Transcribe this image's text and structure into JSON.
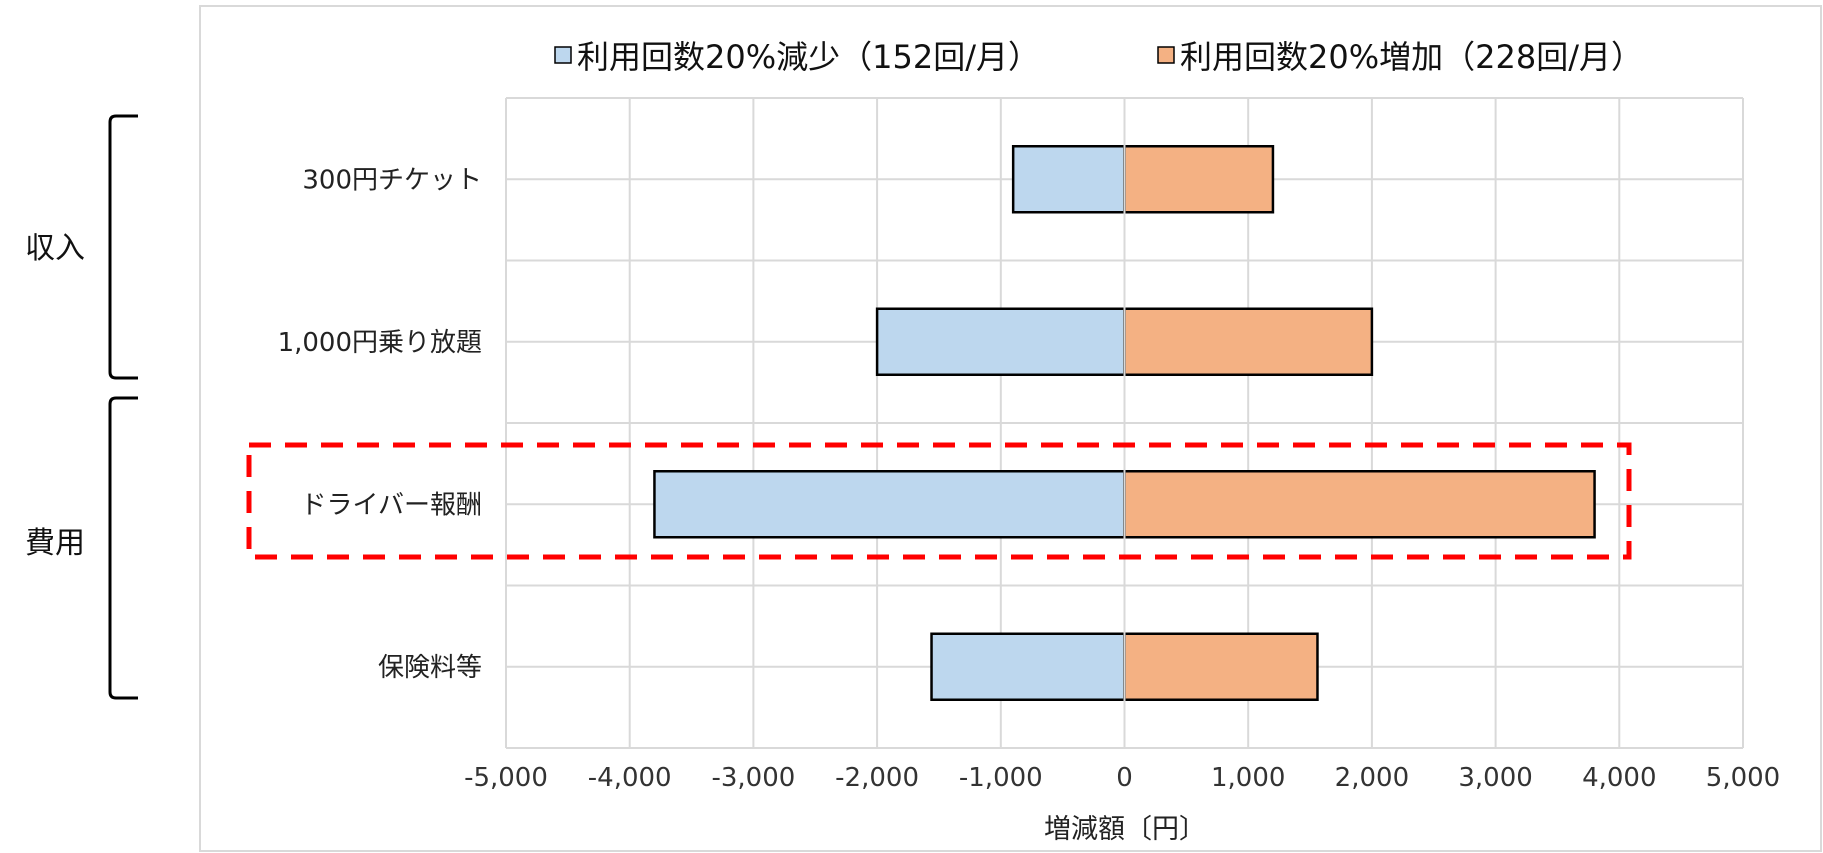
{
  "chart_data": {
    "type": "bar",
    "orientation": "horizontal",
    "stacked": true,
    "categories": [
      "300円チケット",
      "1,000円乗り放題",
      "ドライバー報酬",
      "保険料等"
    ],
    "series": [
      {
        "name": "利用回数20%減少（152回/月）",
        "color": "#bdd7ee",
        "values": [
          -900,
          -2000,
          -3800,
          -1560
        ]
      },
      {
        "name": "利用回数20%増加（228回/月）",
        "color": "#f4b183",
        "values": [
          1200,
          2000,
          3800,
          1560
        ]
      }
    ],
    "xlabel": "増減額〔円〕",
    "xlim": [
      -5000,
      5000
    ],
    "xticks": [
      -5000,
      -4000,
      -3000,
      -2000,
      -1000,
      0,
      1000,
      2000,
      3000,
      4000,
      5000
    ],
    "xtick_labels": [
      "-5,000",
      "-4,000",
      "-3,000",
      "-2,000",
      "-1,000",
      "0",
      "1,000",
      "2,000",
      "3,000",
      "4,000",
      "5,000"
    ],
    "grid": true,
    "legend_position": "top",
    "groups": [
      {
        "label": "収入",
        "categories": [
          "300円チケット",
          "1,000円乗り放題"
        ]
      },
      {
        "label": "費用",
        "categories": [
          "ドライバー報酬",
          "保険料等"
        ]
      }
    ],
    "highlight": {
      "category": "ドライバー報酬",
      "style": "red dashed box",
      "color": "#ff0000"
    }
  }
}
